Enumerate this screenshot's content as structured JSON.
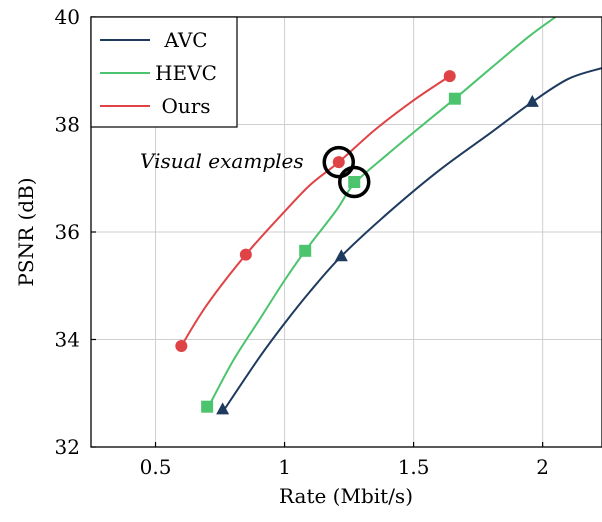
{
  "chart_data": {
    "type": "line",
    "xlabel": "Rate (Mbit/s)",
    "ylabel": "PSNR (dB)",
    "xlim": [
      0.25,
      2.23
    ],
    "ylim": [
      32,
      40
    ],
    "xticks": [
      0.5,
      1,
      1.5,
      2
    ],
    "xtick_labels": [
      "0.5",
      "1",
      "1.5",
      "2"
    ],
    "yticks": [
      32,
      34,
      36,
      38,
      40
    ],
    "ytick_labels": [
      "32",
      "34",
      "36",
      "38",
      "40"
    ],
    "grid": true,
    "legend_position": "top-left",
    "series": [
      {
        "name": "AVC",
        "color": "#1f3a5f",
        "marker": "triangle",
        "points": [
          [
            0.76,
            32.7
          ],
          [
            1.22,
            35.55
          ],
          [
            1.96,
            38.42
          ]
        ],
        "curve": [
          [
            0.76,
            32.65
          ],
          [
            0.9,
            33.65
          ],
          [
            1.0,
            34.3
          ],
          [
            1.1,
            34.9
          ],
          [
            1.22,
            35.55
          ],
          [
            1.4,
            36.35
          ],
          [
            1.6,
            37.15
          ],
          [
            1.8,
            37.85
          ],
          [
            1.96,
            38.42
          ],
          [
            2.1,
            38.85
          ],
          [
            2.23,
            39.05
          ]
        ]
      },
      {
        "name": "HEVC",
        "color": "#4cc46e",
        "marker": "square",
        "points": [
          [
            0.7,
            32.75
          ],
          [
            1.08,
            35.65
          ],
          [
            1.27,
            36.93
          ],
          [
            1.66,
            38.48
          ]
        ],
        "curve": [
          [
            0.7,
            32.7
          ],
          [
            0.8,
            33.6
          ],
          [
            0.9,
            34.35
          ],
          [
            1.0,
            35.1
          ],
          [
            1.08,
            35.65
          ],
          [
            1.2,
            36.4
          ],
          [
            1.27,
            36.9
          ],
          [
            1.4,
            37.45
          ],
          [
            1.55,
            38.05
          ],
          [
            1.66,
            38.48
          ],
          [
            1.8,
            39.05
          ],
          [
            1.95,
            39.65
          ],
          [
            2.05,
            40.0
          ]
        ]
      },
      {
        "name": "Ours",
        "color": "#e04346",
        "marker": "circle",
        "points": [
          [
            0.6,
            33.88
          ],
          [
            0.85,
            35.58
          ],
          [
            1.21,
            37.3
          ],
          [
            1.64,
            38.9
          ]
        ],
        "curve": [
          [
            0.6,
            33.88
          ],
          [
            0.7,
            34.65
          ],
          [
            0.85,
            35.58
          ],
          [
            1.0,
            36.38
          ],
          [
            1.1,
            36.88
          ],
          [
            1.21,
            37.3
          ],
          [
            1.35,
            37.9
          ],
          [
            1.5,
            38.45
          ],
          [
            1.64,
            38.9
          ]
        ]
      }
    ],
    "annotations": [
      {
        "text": "Visual examples",
        "highlighted_points": [
          [
            1.21,
            37.3
          ],
          [
            1.27,
            36.93
          ]
        ]
      }
    ]
  }
}
